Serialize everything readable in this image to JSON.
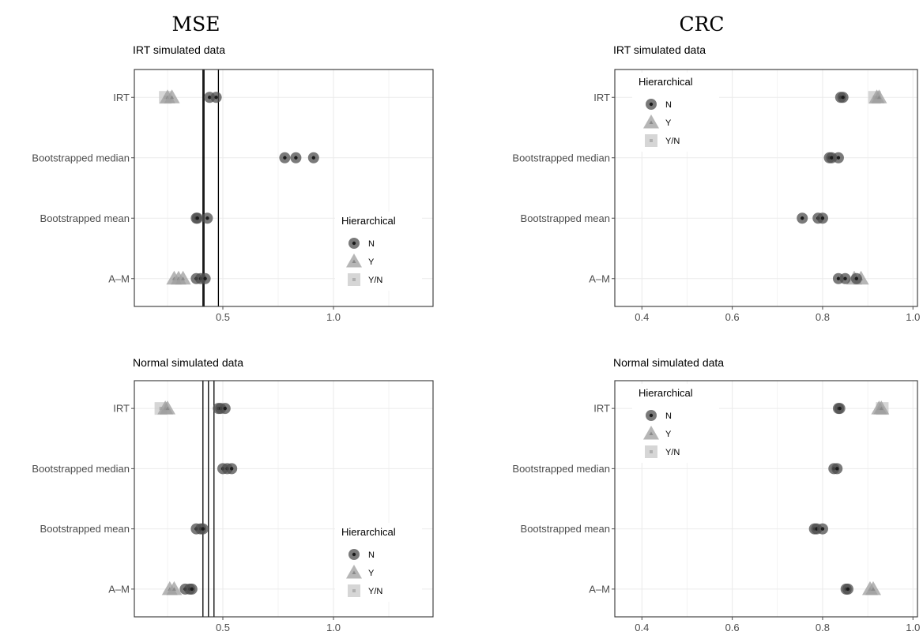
{
  "column_titles": [
    "MSE",
    "CRC"
  ],
  "legend": {
    "title": "Hierarchical",
    "items": [
      {
        "label": "N",
        "shape": "circle"
      },
      {
        "label": "Y",
        "shape": "triangle"
      },
      {
        "label": "Y/N",
        "shape": "square"
      }
    ]
  },
  "colors": {
    "N": "#4d4d4d",
    "Y": "#9e9e9e",
    "YN": "#c8c8c8",
    "grid": "#ebebeb",
    "tick": "#4d4d4d"
  },
  "chart_data": [
    {
      "type": "scatter",
      "column": "MSE",
      "title": "IRT simulated data",
      "categories": [
        "IRT",
        "Bootstrapped median",
        "Bootstrapped mean",
        "A–M"
      ],
      "xlim": [
        0.1,
        1.45
      ],
      "xticks": [
        0.5,
        1.0
      ],
      "xtick_labels": [
        "0.5",
        "1.0"
      ],
      "vlines": [
        0.41,
        0.415,
        0.48
      ],
      "legend_position": "bottom-right",
      "series": [
        {
          "group": "N",
          "points": [
            [
              "IRT",
              0.44
            ],
            [
              "IRT",
              0.47
            ],
            [
              "Bootstrapped median",
              0.78
            ],
            [
              "Bootstrapped median",
              0.83
            ],
            [
              "Bootstrapped median",
              0.91
            ],
            [
              "Bootstrapped mean",
              0.38
            ],
            [
              "Bootstrapped mean",
              0.385
            ],
            [
              "Bootstrapped mean",
              0.43
            ],
            [
              "A–M",
              0.38
            ],
            [
              "A–M",
              0.4
            ],
            [
              "A–M",
              0.42
            ]
          ]
        },
        {
          "group": "Y",
          "points": [
            [
              "IRT",
              0.25
            ],
            [
              "IRT",
              0.27
            ],
            [
              "A–M",
              0.28
            ],
            [
              "A–M",
              0.3
            ],
            [
              "A–M",
              0.32
            ]
          ]
        },
        {
          "group": "Y/N",
          "points": [
            [
              "IRT",
              0.24
            ]
          ]
        }
      ]
    },
    {
      "type": "scatter",
      "column": "CRC",
      "title": "IRT simulated data",
      "categories": [
        "IRT",
        "Bootstrapped median",
        "Bootstrapped mean",
        "A–M"
      ],
      "xlim": [
        0.34,
        1.01
      ],
      "xticks": [
        0.4,
        0.6,
        0.8,
        1.0
      ],
      "xtick_labels": [
        "0.4",
        "0.6",
        "0.8",
        "1.0"
      ],
      "vlines": [],
      "legend_position": "top-left",
      "series": [
        {
          "group": "N",
          "points": [
            [
              "IRT",
              0.84
            ],
            [
              "IRT",
              0.845
            ],
            [
              "Bootstrapped median",
              0.815
            ],
            [
              "Bootstrapped median",
              0.82
            ],
            [
              "Bootstrapped median",
              0.835
            ],
            [
              "Bootstrapped mean",
              0.755
            ],
            [
              "Bootstrapped mean",
              0.79
            ],
            [
              "Bootstrapped mean",
              0.8
            ],
            [
              "A–M",
              0.835
            ],
            [
              "A–M",
              0.85
            ],
            [
              "A–M",
              0.875
            ]
          ]
        },
        {
          "group": "Y",
          "points": [
            [
              "IRT",
              0.92
            ],
            [
              "IRT",
              0.925
            ],
            [
              "A–M",
              0.87
            ],
            [
              "A–M",
              0.885
            ]
          ]
        },
        {
          "group": "Y/N",
          "points": [
            [
              "IRT",
              0.915
            ]
          ]
        }
      ]
    },
    {
      "type": "scatter",
      "column": "MSE",
      "title": "Normal simulated data",
      "categories": [
        "IRT",
        "Bootstrapped median",
        "Bootstrapped mean",
        "A–M"
      ],
      "xlim": [
        0.1,
        1.45
      ],
      "xticks": [
        0.5,
        1.0
      ],
      "xtick_labels": [
        "0.5",
        "1.0"
      ],
      "vlines": [
        0.41,
        0.435,
        0.46
      ],
      "legend_position": "bottom-right",
      "series": [
        {
          "group": "N",
          "points": [
            [
              "IRT",
              0.48
            ],
            [
              "IRT",
              0.49
            ],
            [
              "IRT",
              0.51
            ],
            [
              "Bootstrapped median",
              0.5
            ],
            [
              "Bootstrapped median",
              0.52
            ],
            [
              "Bootstrapped median",
              0.54
            ],
            [
              "Bootstrapped mean",
              0.38
            ],
            [
              "Bootstrapped mean",
              0.4
            ],
            [
              "Bootstrapped mean",
              0.41
            ],
            [
              "A–M",
              0.33
            ],
            [
              "A–M",
              0.35
            ],
            [
              "A–M",
              0.36
            ]
          ]
        },
        {
          "group": "Y",
          "points": [
            [
              "IRT",
              0.24
            ],
            [
              "IRT",
              0.25
            ],
            [
              "A–M",
              0.26
            ],
            [
              "A–M",
              0.28
            ]
          ]
        },
        {
          "group": "Y/N",
          "points": [
            [
              "IRT",
              0.22
            ]
          ]
        }
      ]
    },
    {
      "type": "scatter",
      "column": "CRC",
      "title": "Normal simulated data",
      "categories": [
        "IRT",
        "Bootstrapped median",
        "Bootstrapped mean",
        "A–M"
      ],
      "xlim": [
        0.34,
        1.01
      ],
      "xticks": [
        0.4,
        0.6,
        0.8,
        1.0
      ],
      "xtick_labels": [
        "0.4",
        "0.6",
        "0.8",
        "1.0"
      ],
      "vlines": [],
      "legend_position": "top-left",
      "series": [
        {
          "group": "N",
          "points": [
            [
              "IRT",
              0.835
            ],
            [
              "IRT",
              0.838
            ],
            [
              "Bootstrapped median",
              0.825
            ],
            [
              "Bootstrapped median",
              0.832
            ],
            [
              "Bootstrapped mean",
              0.782
            ],
            [
              "Bootstrapped mean",
              0.787
            ],
            [
              "Bootstrapped mean",
              0.8
            ],
            [
              "A–M",
              0.852
            ],
            [
              "A–M",
              0.856
            ]
          ]
        },
        {
          "group": "Y",
          "points": [
            [
              "IRT",
              0.925
            ],
            [
              "IRT",
              0.93
            ],
            [
              "A–M",
              0.905
            ],
            [
              "A–M",
              0.912
            ]
          ]
        },
        {
          "group": "Y/N",
          "points": [
            [
              "IRT",
              0.932
            ]
          ]
        }
      ]
    }
  ]
}
